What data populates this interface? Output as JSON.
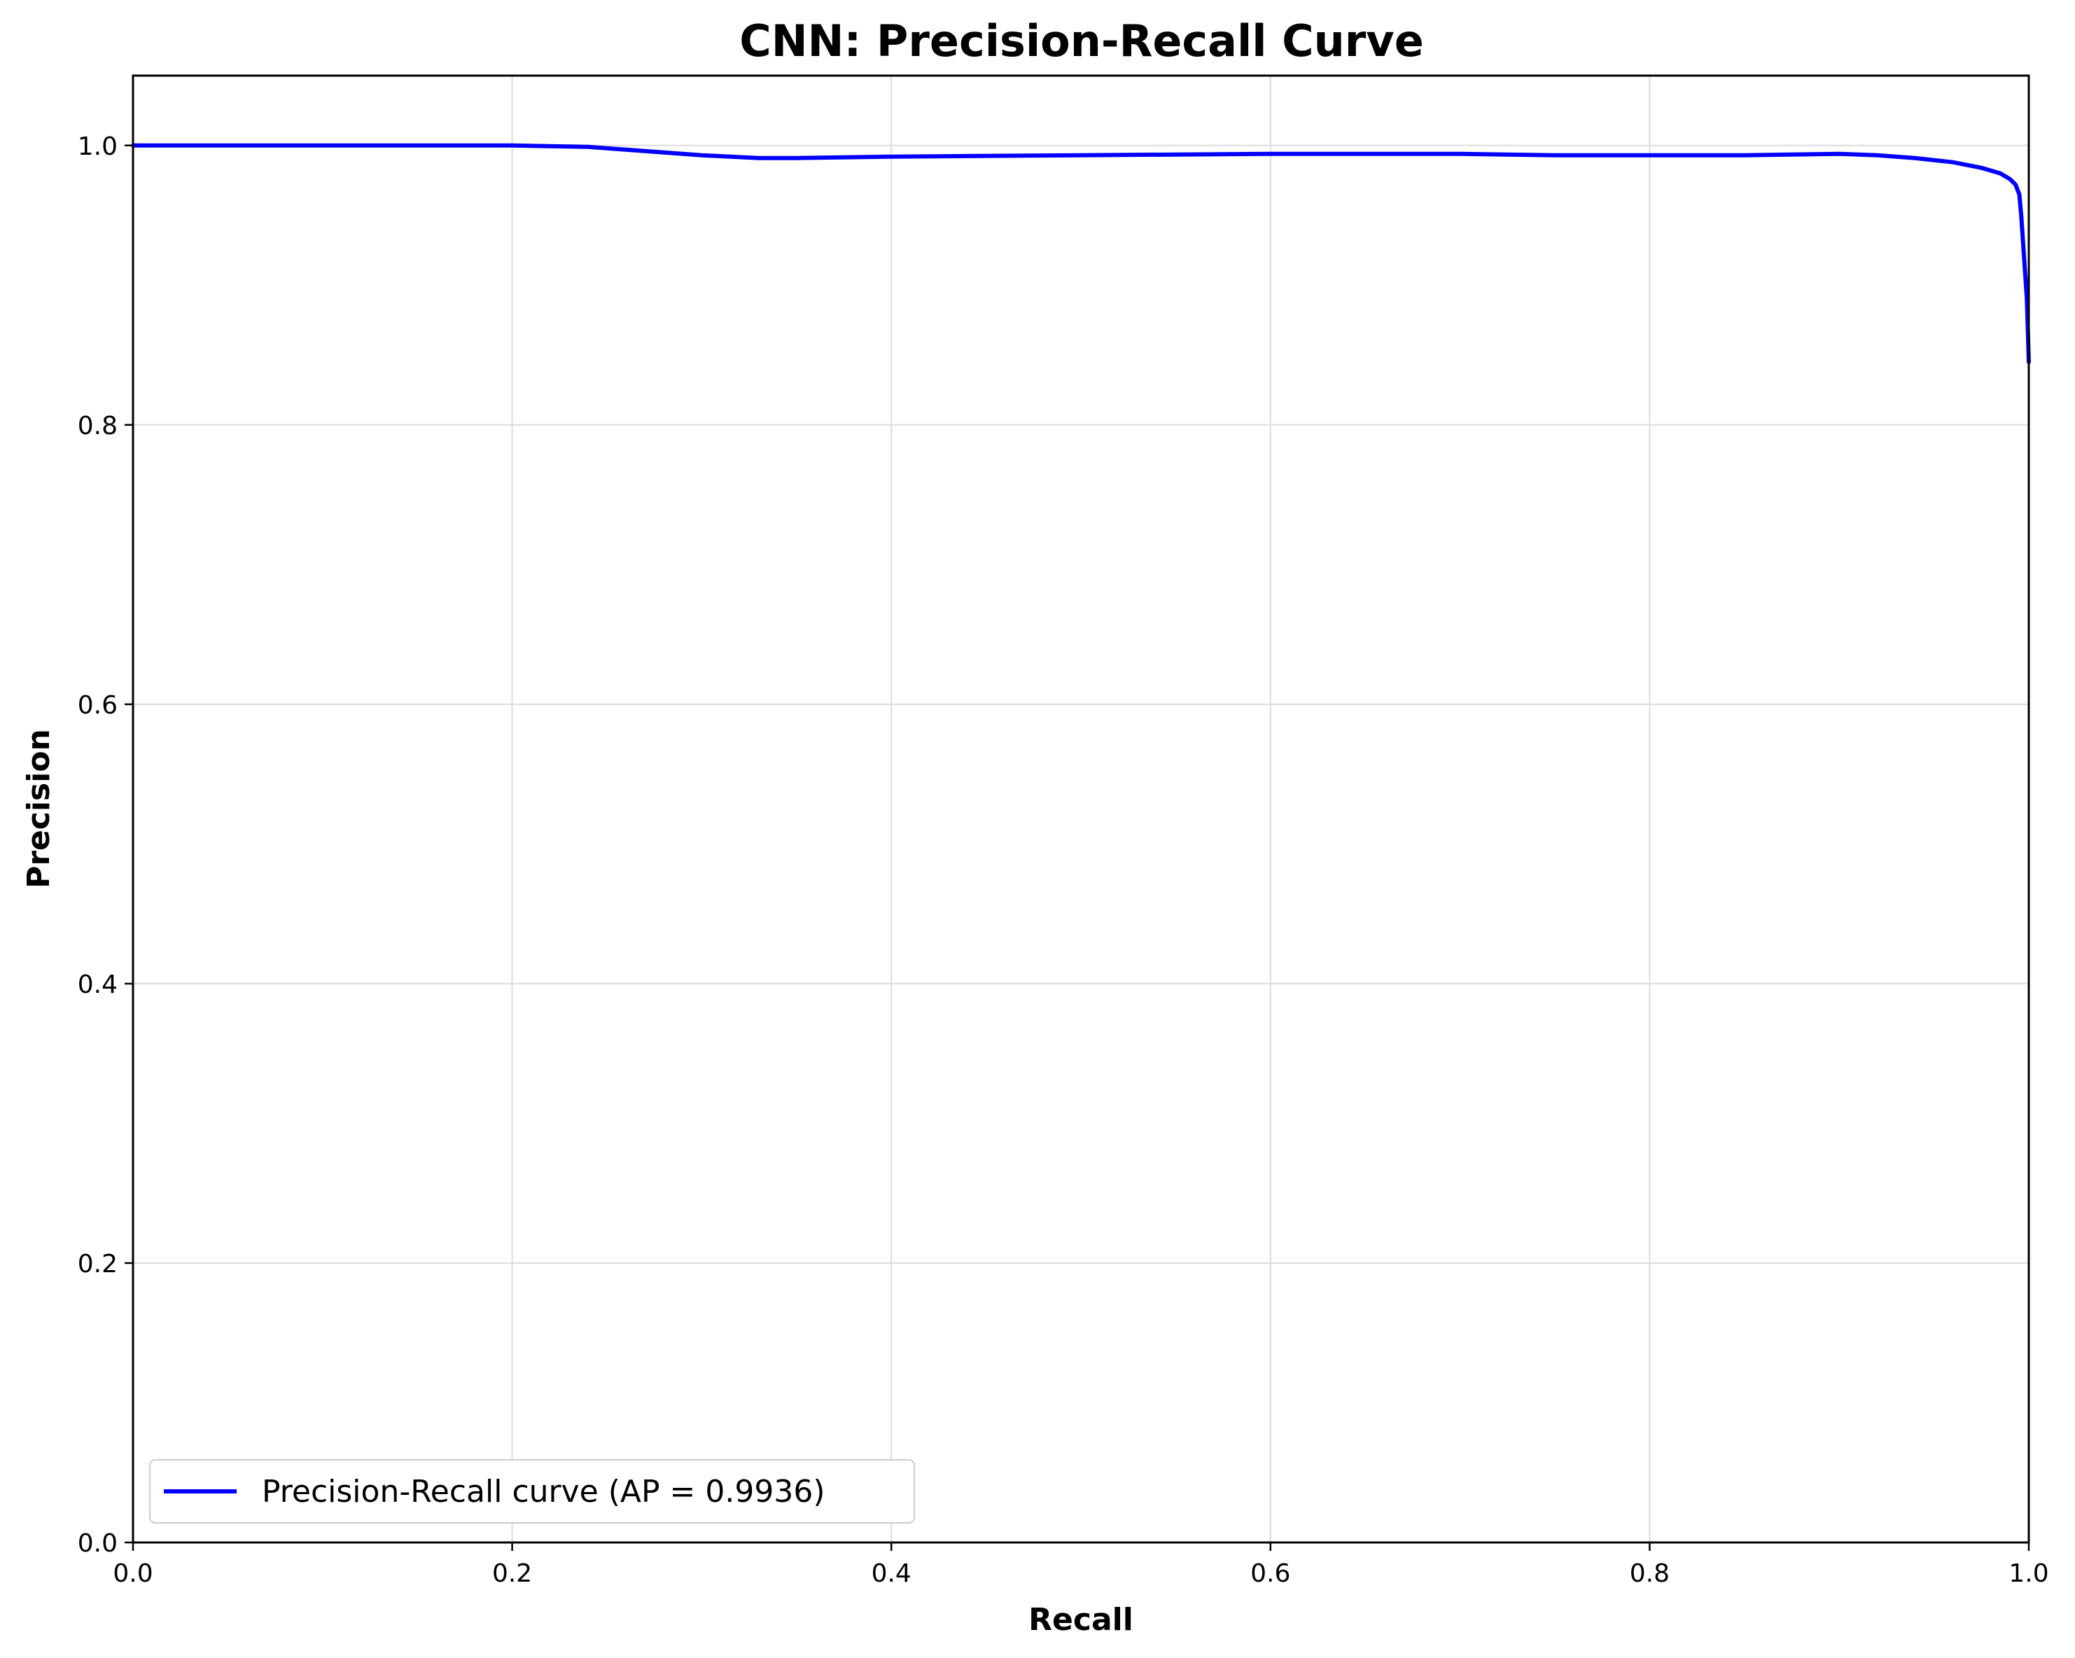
{
  "chart_data": {
    "type": "line",
    "title": "CNN: Precision-Recall Curve",
    "xlabel": "Recall",
    "ylabel": "Precision",
    "xlim": [
      0.0,
      1.0
    ],
    "ylim": [
      0.0,
      1.05
    ],
    "xticks": [
      "0.0",
      "0.2",
      "0.4",
      "0.6",
      "0.8",
      "1.0"
    ],
    "yticks": [
      "0.0",
      "0.2",
      "0.4",
      "0.6",
      "0.8",
      "1.0"
    ],
    "grid": true,
    "legend_position": "lower-left",
    "series": [
      {
        "name": "Precision-Recall curve (AP = 0.9936)",
        "color": "#0000ff",
        "x": [
          0.0,
          0.05,
          0.1,
          0.15,
          0.2,
          0.22,
          0.24,
          0.26,
          0.28,
          0.3,
          0.33,
          0.35,
          0.4,
          0.5,
          0.6,
          0.7,
          0.75,
          0.8,
          0.85,
          0.9,
          0.92,
          0.94,
          0.96,
          0.975,
          0.985,
          0.99,
          0.993,
          0.995,
          0.996,
          0.997,
          0.998,
          0.999,
          1.0
        ],
        "y": [
          1.0,
          1.0,
          1.0,
          1.0,
          1.0,
          0.9995,
          0.999,
          0.997,
          0.995,
          0.993,
          0.991,
          0.991,
          0.992,
          0.993,
          0.994,
          0.994,
          0.993,
          0.993,
          0.993,
          0.994,
          0.993,
          0.991,
          0.988,
          0.984,
          0.98,
          0.976,
          0.972,
          0.965,
          0.95,
          0.93,
          0.91,
          0.89,
          0.845
        ]
      }
    ]
  }
}
